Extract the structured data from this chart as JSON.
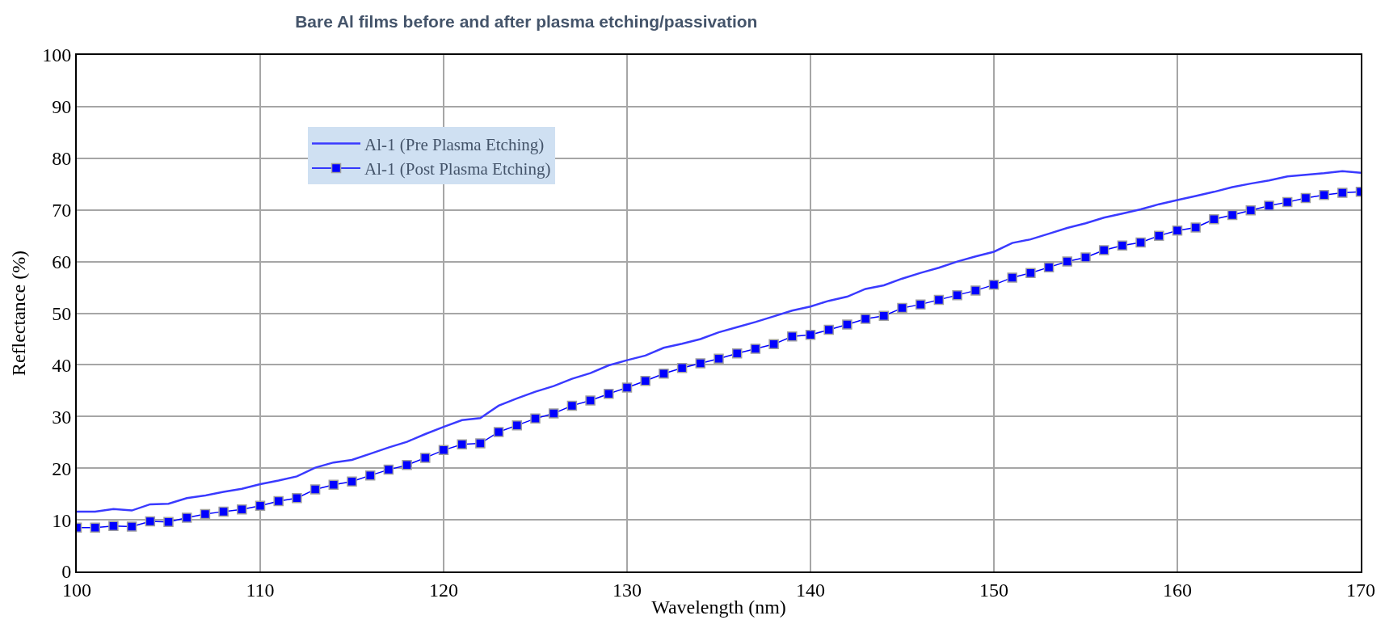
{
  "chart_data": {
    "type": "line",
    "title": "Bare Al films before and after plasma etching/passivation",
    "xlabel": "Wavelength (nm)",
    "ylabel": "Reflectance (%)",
    "x": [
      100,
      101,
      102,
      103,
      104,
      105,
      106,
      107,
      108,
      109,
      110,
      111,
      112,
      113,
      114,
      115,
      116,
      117,
      118,
      119,
      120,
      121,
      122,
      123,
      124,
      125,
      126,
      127,
      128,
      129,
      130,
      131,
      132,
      133,
      134,
      135,
      136,
      137,
      138,
      139,
      140,
      141,
      142,
      143,
      144,
      145,
      146,
      147,
      148,
      149,
      150,
      151,
      152,
      153,
      154,
      155,
      156,
      157,
      158,
      159,
      160,
      161,
      162,
      163,
      164,
      165,
      166,
      167,
      168,
      169,
      170
    ],
    "series": [
      {
        "name": "Al-1 (Pre Plasma Etching)",
        "color": "#3a3aff",
        "marker": "none",
        "values": [
          11.6,
          11.6,
          12.1,
          11.8,
          13.0,
          13.1,
          14.2,
          14.7,
          15.4,
          16.0,
          16.9,
          17.6,
          18.4,
          20.1,
          21.1,
          21.6,
          22.8,
          24.0,
          25.1,
          26.6,
          28.0,
          29.3,
          29.7,
          32.1,
          33.5,
          34.8,
          35.9,
          37.3,
          38.4,
          39.9,
          40.9,
          41.8,
          43.3,
          44.1,
          45.0,
          46.3,
          47.3,
          48.3,
          49.4,
          50.5,
          51.3,
          52.4,
          53.2,
          54.7,
          55.4,
          56.7,
          57.8,
          58.8,
          60.0,
          61.0,
          61.9,
          63.6,
          64.3,
          65.4,
          66.5,
          67.4,
          68.5,
          69.3,
          70.1,
          71.1,
          71.9,
          72.7,
          73.5,
          74.4,
          75.1,
          75.7,
          76.5,
          76.8,
          77.1,
          77.5,
          77.2
        ]
      },
      {
        "name": "Al-1 (Post Plasma Etching)",
        "color": "#0000ff",
        "marker": "square",
        "values": [
          8.5,
          8.5,
          8.8,
          8.7,
          9.7,
          9.6,
          10.4,
          11.1,
          11.6,
          12.0,
          12.7,
          13.6,
          14.2,
          15.9,
          16.8,
          17.4,
          18.6,
          19.7,
          20.6,
          22.0,
          23.5,
          24.6,
          24.8,
          27.0,
          28.3,
          29.6,
          30.6,
          32.1,
          33.1,
          34.4,
          35.6,
          36.9,
          38.3,
          39.4,
          40.3,
          41.2,
          42.2,
          43.1,
          44.0,
          45.5,
          45.8,
          46.8,
          47.8,
          48.9,
          49.5,
          51.0,
          51.7,
          52.6,
          53.5,
          54.4,
          55.5,
          56.9,
          57.8,
          58.9,
          60.0,
          60.8,
          62.2,
          63.1,
          63.7,
          65.0,
          66.0,
          66.6,
          68.2,
          69.0,
          69.9,
          70.8,
          71.5,
          72.3,
          72.9,
          73.3,
          73.5
        ]
      }
    ],
    "xlim": [
      100,
      170
    ],
    "xticks": [
      100,
      110,
      120,
      130,
      140,
      150,
      160,
      170
    ],
    "ylim": [
      0,
      100
    ],
    "yticks": [
      0,
      10,
      20,
      30,
      40,
      50,
      60,
      70,
      80,
      90,
      100
    ],
    "grid": true,
    "legend": "top left",
    "line_style": "solid"
  }
}
